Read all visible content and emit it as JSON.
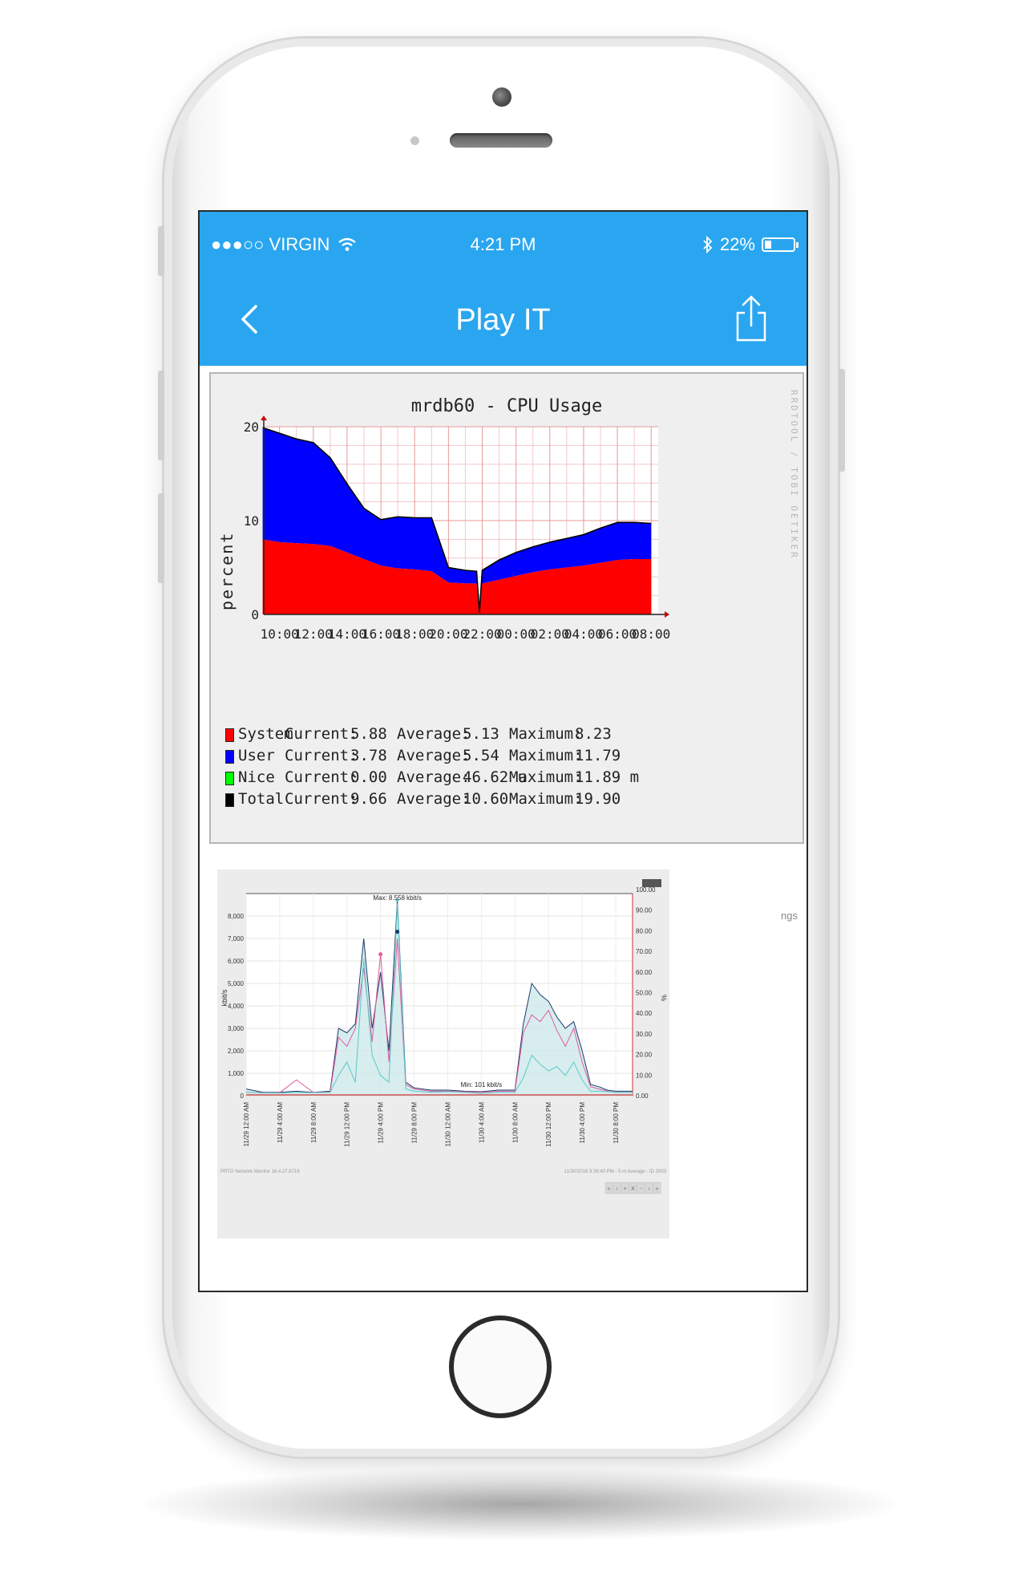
{
  "status_bar": {
    "carrier": "●●●○○ VIRGIN",
    "time": "4:21 PM",
    "battery": "22%",
    "battery_level": 0.22
  },
  "nav": {
    "title": "Play IT",
    "back_icon": "chevron-left-icon",
    "share_icon": "share-icon"
  },
  "colors": {
    "accent": "#2aa6f0",
    "system": "#ff0000",
    "user": "#0000ff",
    "nice": "#00ff00",
    "total": "#000000",
    "traffic_total": "#1a3a6a",
    "traffic_pink": "#e05aa0",
    "traffic_cyan": "#5fc8c8"
  },
  "cpu_chart": {
    "title": "mrdb60 - CPU Usage",
    "ylabel": "percent",
    "side_text": "RRDTOOL / TOBI OETIKER",
    "legend": [
      {
        "name": "System",
        "current_label": "Current:",
        "current": "5.88",
        "average_label": "Average:",
        "average": "5.13",
        "maximum_label": "Maximum:",
        "maximum": "8.23"
      },
      {
        "name": "User",
        "current_label": "Current:",
        "current": "3.78",
        "average_label": "Average:",
        "average": "5.54",
        "maximum_label": "Maximum:",
        "maximum": "11.79"
      },
      {
        "name": "Nice",
        "current_label": "Current:",
        "current": "0.00",
        "average_label": "Average:",
        "average": "46.62 u",
        "maximum_label": "Maximum:",
        "maximum": "11.89 m"
      },
      {
        "name": "Total",
        "current_label": "Current:",
        "current": "9.66",
        "average_label": "Average:",
        "average": "10.60",
        "maximum_label": "Maximum:",
        "maximum": "19.90"
      }
    ]
  },
  "traffic_chart": {
    "max_label": "Max: 8.558 kbit/s",
    "min_label": "Min: 101 kbit/s",
    "ylabel_left": "kbit/s",
    "ylabel_right": "%",
    "footer_left": "PRTG Network Monitor 16.4.27.6719",
    "footer_right": "11/30/2016 9:36:40 PM - 5 m Average - ID 2003",
    "nav_buttons": [
      "«",
      "‹",
      "+",
      "X",
      "-",
      "›",
      "»"
    ],
    "clipped_text": "ngs"
  },
  "chart_data": [
    {
      "type": "area",
      "title": "mrdb60 - CPU Usage",
      "ylabel": "percent",
      "xlabel": "",
      "ylim": [
        0,
        20
      ],
      "yticks": [
        0,
        10,
        20
      ],
      "x_ticks": [
        "10:00",
        "12:00",
        "14:00",
        "16:00",
        "18:00",
        "20:00",
        "22:00",
        "00:00",
        "02:00",
        "04:00",
        "06:00",
        "08:00"
      ],
      "x": [
        "09:00",
        "10:00",
        "11:00",
        "12:00",
        "13:00",
        "14:00",
        "15:00",
        "16:00",
        "17:00",
        "18:00",
        "19:00",
        "20:00",
        "21:00",
        "21:40",
        "21:50",
        "22:00",
        "23:00",
        "00:00",
        "01:00",
        "02:00",
        "03:00",
        "04:00",
        "05:00",
        "06:00",
        "07:00",
        "08:00"
      ],
      "stacked": true,
      "series": [
        {
          "name": "System",
          "values": [
            8.0,
            7.7,
            7.6,
            7.5,
            7.3,
            6.6,
            5.9,
            5.2,
            4.9,
            4.8,
            4.6,
            3.4,
            3.3,
            3.3,
            0.1,
            3.3,
            3.7,
            4.1,
            4.5,
            4.8,
            5.0,
            5.2,
            5.5,
            5.8,
            5.9,
            5.9
          ]
        },
        {
          "name": "User",
          "values": [
            11.9,
            11.6,
            11.1,
            10.8,
            9.4,
            7.3,
            5.4,
            4.9,
            5.5,
            5.5,
            5.7,
            1.6,
            1.4,
            1.3,
            0.1,
            1.4,
            2.1,
            2.5,
            2.7,
            2.9,
            3.1,
            3.3,
            3.7,
            4.0,
            3.9,
            3.8
          ]
        },
        {
          "name": "Nice",
          "values": [
            0,
            0,
            0,
            0,
            0,
            0,
            0,
            0,
            0,
            0,
            0,
            0,
            0,
            0,
            0,
            0,
            0,
            0,
            0,
            0,
            0,
            0,
            0,
            0,
            0,
            0
          ]
        }
      ],
      "total": [
        19.9,
        19.3,
        18.7,
        18.3,
        16.7,
        13.9,
        11.3,
        10.1,
        10.4,
        10.3,
        10.3,
        5.0,
        4.7,
        4.6,
        0.2,
        4.7,
        5.8,
        6.6,
        7.2,
        7.7,
        8.1,
        8.5,
        9.2,
        9.8,
        9.8,
        9.7
      ]
    },
    {
      "type": "line",
      "title": "",
      "ylabel": "kbit/s",
      "ylabel_right": "%",
      "ylim": [
        0,
        9000
      ],
      "y2lim": [
        0,
        100
      ],
      "yticks": [
        "0",
        "1,000",
        "2,000",
        "3,000",
        "4,000",
        "5,000",
        "6,000",
        "7,000",
        "8,000"
      ],
      "y2ticks": [
        "0.00",
        "10.00",
        "20.00",
        "30.00",
        "40.00",
        "50.00",
        "60.00",
        "70.00",
        "80.00",
        "90.00",
        "100.00"
      ],
      "x_ticks": [
        "11/29 12:00 AM",
        "11/29 4:00 AM",
        "11/29 8:00 AM",
        "11/29 12:00 PM",
        "11/29 4:00 PM",
        "11/29 8:00 PM",
        "11/30 12:00 AM",
        "11/30 4:00 AM",
        "11/30 8:00 AM",
        "11/30 12:00 PM",
        "11/30 4:00 PM",
        "11/30 8:00 PM"
      ],
      "x": [
        0,
        2,
        4,
        6,
        8,
        10,
        11,
        12,
        13,
        14,
        15,
        16,
        17,
        18,
        19,
        20,
        22,
        24,
        26,
        28,
        30,
        32,
        33,
        34,
        35,
        36,
        37,
        38,
        39,
        40,
        41,
        42,
        43,
        44,
        46
      ],
      "series": [
        {
          "name": "Total",
          "values": [
            150,
            130,
            120,
            150,
            140,
            150,
            900,
            1500,
            600,
            6100,
            1800,
            900,
            600,
            8558,
            300,
            200,
            150,
            180,
            150,
            101,
            150,
            150,
            800,
            1800,
            1400,
            1100,
            1300,
            900,
            1500,
            700,
            200,
            200,
            180,
            150,
            150
          ]
        },
        {
          "name": "Pink",
          "values": [
            150,
            130,
            140,
            700,
            150,
            150,
            2600,
            2200,
            3000,
            5700,
            2400,
            6300,
            1500,
            7000,
            500,
            300,
            200,
            200,
            180,
            150,
            200,
            200,
            2800,
            3600,
            3300,
            3800,
            2900,
            2200,
            3000,
            1500,
            400,
            300,
            200,
            150,
            150
          ]
        },
        {
          "name": "Cyan",
          "values": [
            300,
            150,
            150,
            200,
            150,
            200,
            3000,
            2800,
            3200,
            7000,
            3000,
            5500,
            2000,
            8700,
            600,
            350,
            250,
            250,
            200,
            180,
            250,
            250,
            3200,
            5000,
            4500,
            4200,
            3500,
            3000,
            3300,
            2000,
            500,
            400,
            250,
            200,
            200
          ]
        }
      ],
      "annotations": [
        "Max: 8.558 kbit/s",
        "Min: 101 kbit/s"
      ]
    }
  ]
}
